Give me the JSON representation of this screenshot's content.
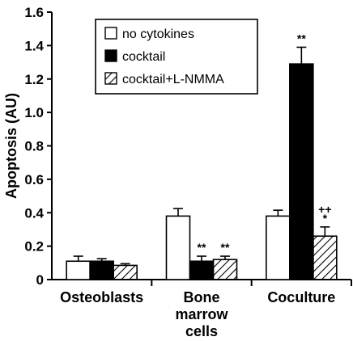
{
  "chart_data": {
    "type": "bar",
    "title": "",
    "xlabel": "",
    "ylabel": "Apoptosis (AU)",
    "ylim": [
      0,
      1.6
    ],
    "yticks": [
      "0",
      "0.2",
      "0.4",
      "0.6",
      "0.8",
      "1.0",
      "1.2",
      "1.4",
      "1.6"
    ],
    "categories": [
      [
        "Osteoblasts"
      ],
      [
        "Bone",
        "marrow",
        "cells"
      ],
      [
        "Coculture"
      ]
    ],
    "series": [
      {
        "name": "no cytokines",
        "fill": "white",
        "values": [
          0.11,
          0.38,
          0.38
        ],
        "errors": [
          0.03,
          0.045,
          0.035
        ]
      },
      {
        "name": "cocktail",
        "fill": "black",
        "values": [
          0.11,
          0.11,
          1.29
        ],
        "errors": [
          0.015,
          0.03,
          0.1
        ]
      },
      {
        "name": "cocktail+L-NMMA",
        "fill": "hatch",
        "values": [
          0.085,
          0.12,
          0.26
        ],
        "errors": [
          0.01,
          0.02,
          0.055
        ]
      }
    ],
    "annotations": [
      {
        "category": 1,
        "series": 1,
        "text": "**"
      },
      {
        "category": 1,
        "series": 2,
        "text": "**"
      },
      {
        "category": 2,
        "series": 1,
        "text": "**"
      },
      {
        "category": 2,
        "series": 2,
        "text": "++"
      },
      {
        "category": 2,
        "series": 2,
        "text": "*"
      }
    ],
    "legend_position": "top-center",
    "grid": false,
    "colors": {
      "axis": "#000000",
      "background": "#ffffff"
    }
  }
}
